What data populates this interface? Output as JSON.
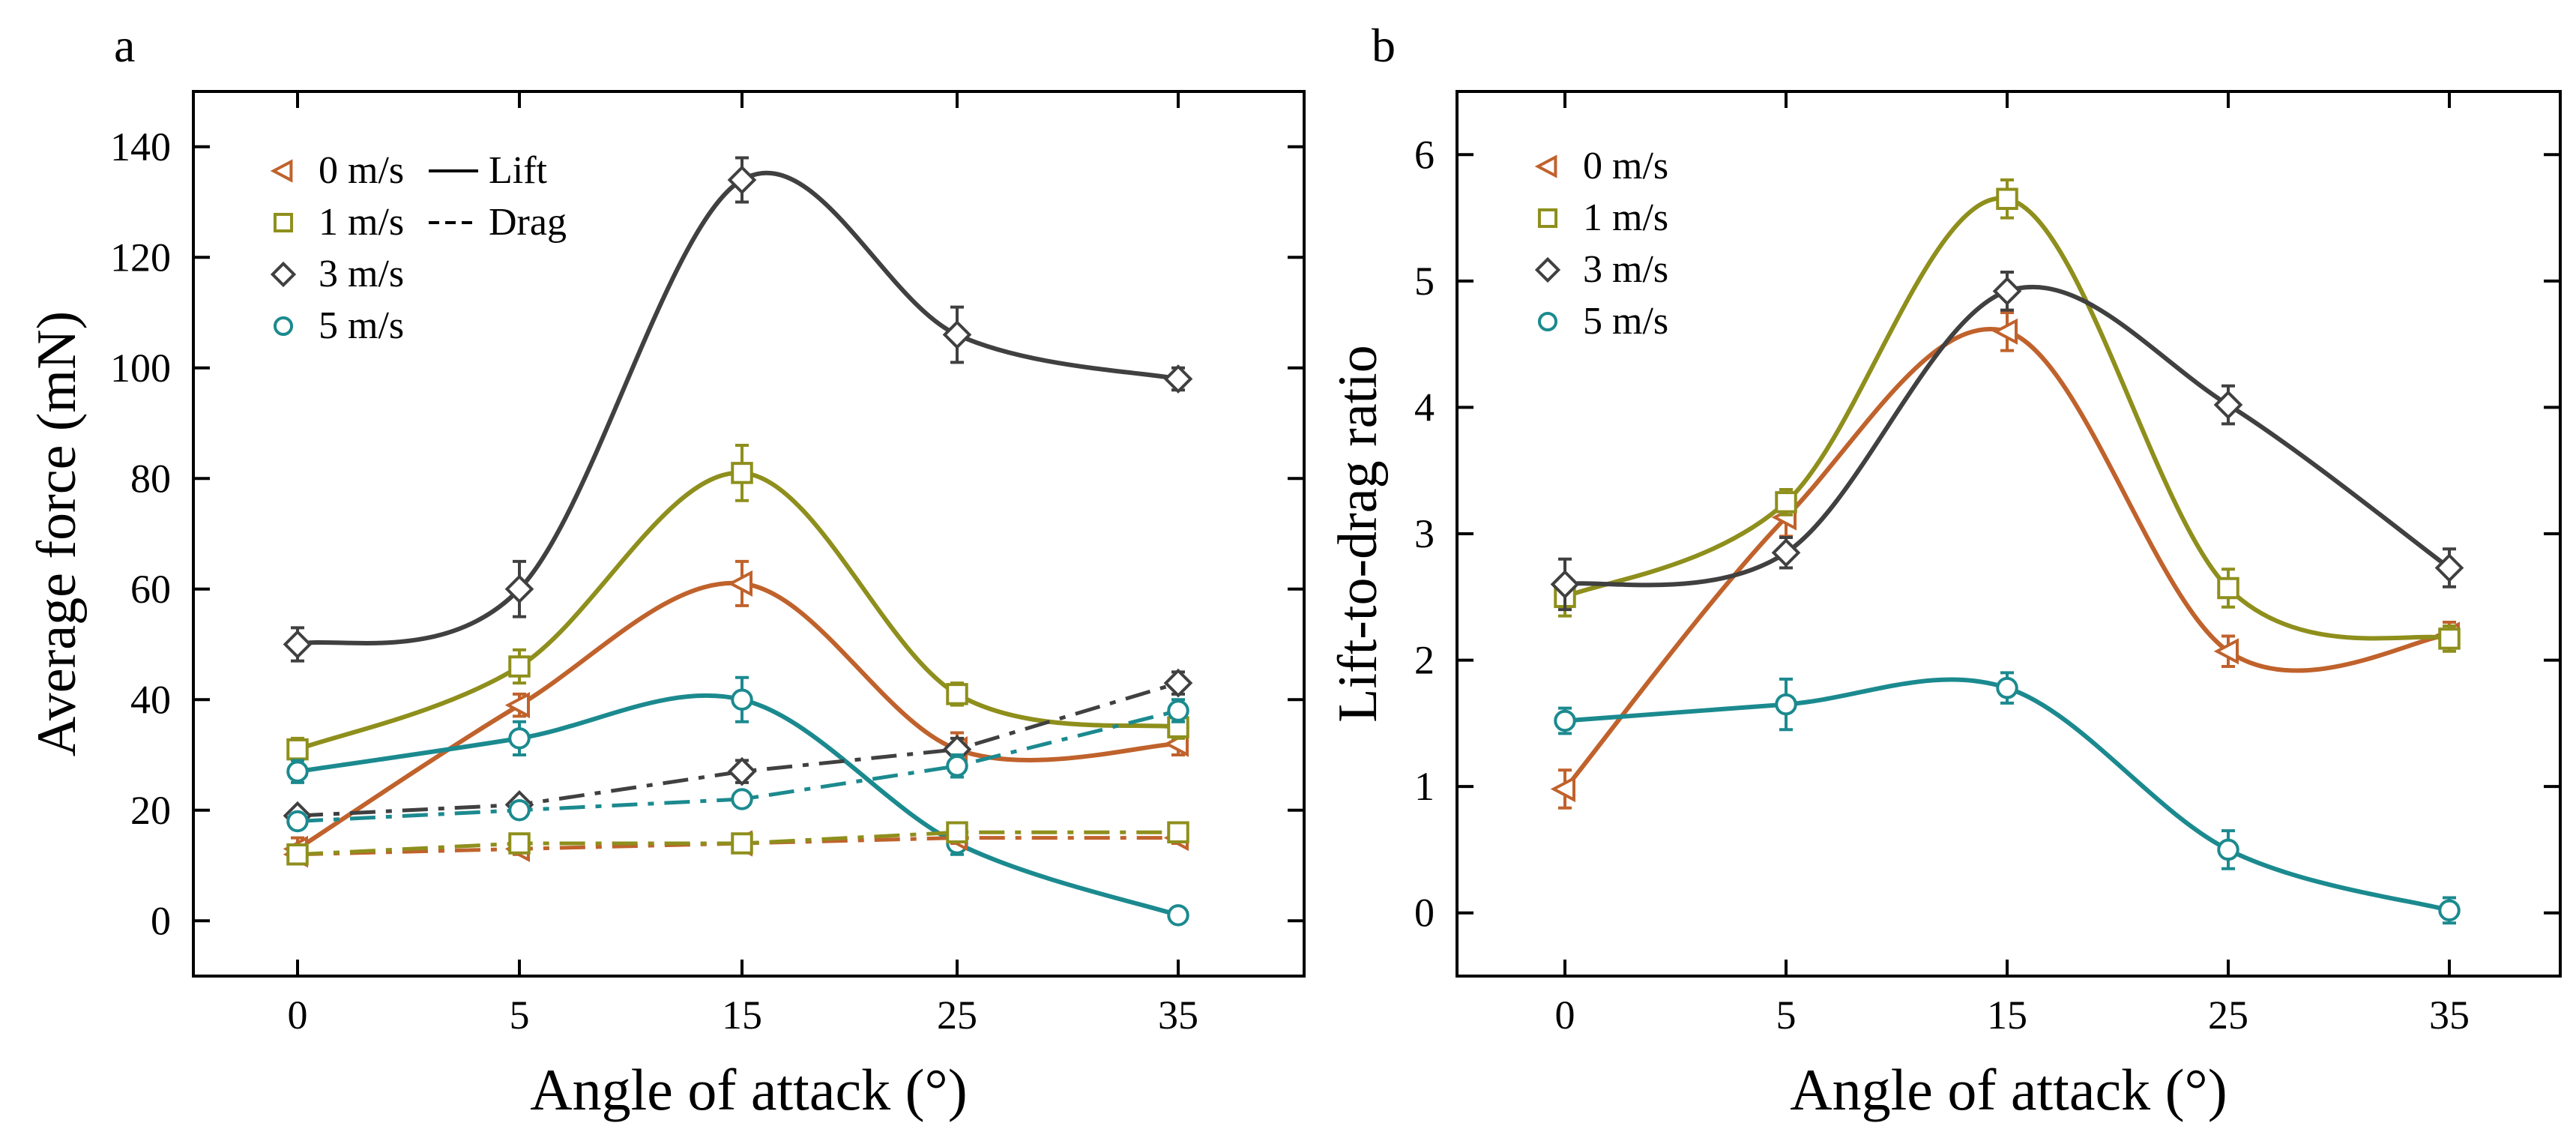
{
  "chart_data": [
    {
      "panel": "a",
      "type": "line",
      "xlabel": "Angle of attack (°)",
      "ylabel": "Average force (mN)",
      "x": [
        0,
        5,
        15,
        25,
        35
      ],
      "x_ticks": [
        0,
        5,
        15,
        25,
        35
      ],
      "y_ticks": [
        0,
        20,
        40,
        60,
        80,
        100,
        120,
        140
      ],
      "ylim": [
        -10,
        150
      ],
      "legend": {
        "position": "top-left",
        "entries": [
          {
            "label": "0 m/s",
            "marker": "triangle-left",
            "color": "#c0622c"
          },
          {
            "label": "1 m/s",
            "marker": "square",
            "color": "#8e8f1c"
          },
          {
            "label": "3 m/s",
            "marker": "diamond",
            "color": "#404040"
          },
          {
            "label": "5 m/s",
            "marker": "circle",
            "color": "#1b8a8f"
          }
        ],
        "style_entries": [
          {
            "label": "Lift",
            "style": "solid"
          },
          {
            "label": "Drag",
            "style": "dashed"
          }
        ]
      },
      "series": [
        {
          "name": "0 m/s Lift",
          "speed": "0 m/s",
          "kind": "lift",
          "color": "#c0622c",
          "marker": "triangle-left",
          "values": [
            13,
            39,
            61,
            31,
            32
          ],
          "errors": [
            2,
            2,
            4,
            3,
            2
          ]
        },
        {
          "name": "1 m/s Lift",
          "speed": "1 m/s",
          "kind": "lift",
          "color": "#8e8f1c",
          "marker": "square",
          "values": [
            31,
            46,
            81,
            41,
            35
          ],
          "errors": [
            2,
            3,
            5,
            2,
            2
          ]
        },
        {
          "name": "3 m/s Lift",
          "speed": "3 m/s",
          "kind": "lift",
          "color": "#404040",
          "marker": "diamond",
          "values": [
            50,
            60,
            134,
            106,
            98
          ],
          "errors": [
            3,
            5,
            4,
            5,
            2
          ]
        },
        {
          "name": "5 m/s Lift",
          "speed": "5 m/s",
          "kind": "lift",
          "color": "#1b8a8f",
          "marker": "circle",
          "values": [
            27,
            33,
            40,
            14,
            1
          ],
          "errors": [
            2,
            3,
            4,
            2,
            1
          ]
        },
        {
          "name": "0 m/s Drag",
          "speed": "0 m/s",
          "kind": "drag",
          "color": "#c0622c",
          "marker": "triangle-left",
          "values": [
            12,
            13,
            14,
            15,
            15
          ],
          "errors": [
            1,
            1,
            1,
            1,
            1
          ]
        },
        {
          "name": "1 m/s Drag",
          "speed": "1 m/s",
          "kind": "drag",
          "color": "#8e8f1c",
          "marker": "square",
          "values": [
            12,
            14,
            14,
            16,
            16
          ],
          "errors": [
            1,
            1,
            1,
            1,
            1
          ]
        },
        {
          "name": "3 m/s Drag",
          "speed": "3 m/s",
          "kind": "drag",
          "color": "#404040",
          "marker": "diamond",
          "values": [
            19,
            21,
            27,
            31,
            43
          ],
          "errors": [
            1,
            1,
            2,
            2,
            2
          ]
        },
        {
          "name": "5 m/s Drag",
          "speed": "5 m/s",
          "kind": "drag",
          "color": "#1b8a8f",
          "marker": "circle",
          "values": [
            18,
            20,
            22,
            28,
            38
          ],
          "errors": [
            1,
            1,
            1,
            2,
            2
          ]
        }
      ]
    },
    {
      "panel": "b",
      "type": "line",
      "xlabel": "Angle of attack (°)",
      "ylabel": "Lift-to-drag ratio",
      "x": [
        0,
        5,
        15,
        25,
        35
      ],
      "x_ticks": [
        0,
        5,
        15,
        25,
        35
      ],
      "y_ticks": [
        0,
        1,
        2,
        3,
        4,
        5,
        6
      ],
      "ylim": [
        -0.5,
        6.5
      ],
      "legend": {
        "position": "top-left",
        "entries": [
          {
            "label": "0 m/s",
            "marker": "triangle-left",
            "color": "#c0622c"
          },
          {
            "label": "1 m/s",
            "marker": "square",
            "color": "#8e8f1c"
          },
          {
            "label": "3 m/s",
            "marker": "diamond",
            "color": "#404040"
          },
          {
            "label": "5 m/s",
            "marker": "circle",
            "color": "#1b8a8f"
          }
        ]
      },
      "series": [
        {
          "name": "0 m/s",
          "speed": "0 m/s",
          "kind": "ratio",
          "color": "#c0622c",
          "marker": "triangle-left",
          "values": [
            0.98,
            3.13,
            4.6,
            2.07,
            2.2
          ],
          "errors": [
            0.15,
            0.15,
            0.15,
            0.12,
            0.1
          ]
        },
        {
          "name": "1 m/s",
          "speed": "1 m/s",
          "kind": "ratio",
          "color": "#8e8f1c",
          "marker": "square",
          "values": [
            2.5,
            3.25,
            5.65,
            2.57,
            2.17
          ],
          "errors": [
            0.15,
            0.1,
            0.15,
            0.15,
            0.1
          ]
        },
        {
          "name": "3 m/s",
          "speed": "3 m/s",
          "kind": "ratio",
          "color": "#404040",
          "marker": "diamond",
          "values": [
            2.6,
            2.85,
            4.92,
            4.02,
            2.73
          ],
          "errors": [
            0.2,
            0.12,
            0.15,
            0.15,
            0.15
          ]
        },
        {
          "name": "5 m/s",
          "speed": "5 m/s",
          "kind": "ratio",
          "color": "#1b8a8f",
          "marker": "circle",
          "values": [
            1.52,
            1.65,
            1.78,
            0.5,
            0.02
          ],
          "errors": [
            0.1,
            0.2,
            0.12,
            0.15,
            0.1
          ]
        }
      ]
    }
  ]
}
